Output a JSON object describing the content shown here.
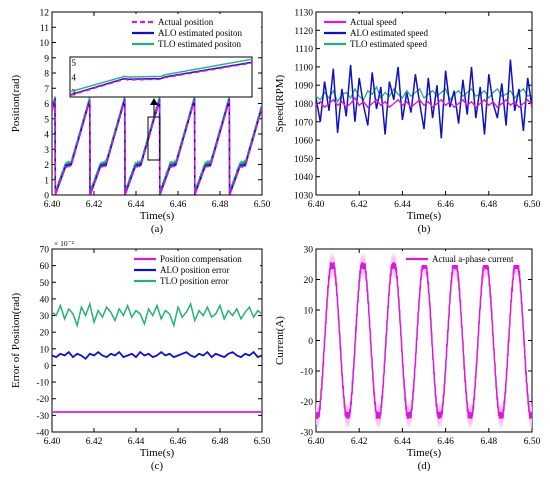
{
  "colors": {
    "actual": "#d81bd8",
    "alo": "#1010c8",
    "tlo": "#27b07a",
    "current_band": "#f6c6f6"
  },
  "chart_data": [
    {
      "type": "line",
      "panel": "(a)",
      "xlabel": "Time(s)",
      "ylabel": "Position(rad)",
      "xlim": [
        6.4,
        6.5
      ],
      "ylim": [
        0,
        12
      ],
      "xticks": [
        "6.40",
        "6.42",
        "6.44",
        "6.46",
        "6.48",
        "6.50"
      ],
      "yticks": [
        "0",
        "1",
        "2",
        "3",
        "4",
        "5",
        "6",
        "7",
        "8",
        "9",
        "10",
        "11",
        "12"
      ],
      "grid": false,
      "legend_position": "top-right",
      "period": 0.0166,
      "phase_start": 6.4015,
      "peak": 6.28,
      "series": [
        {
          "name": "Actual position",
          "style": "dashed",
          "color_key": "actual"
        },
        {
          "name": "ALO estimated positon",
          "style": "solid",
          "color_key": "alo"
        },
        {
          "name": "TLO estimated positon",
          "style": "solid",
          "color_key": "tlo"
        }
      ],
      "inset": {
        "yticks": [
          "3",
          "4",
          "5"
        ],
        "tlo": [
          [
            0,
            3.05
          ],
          [
            0.3,
            4.1
          ],
          [
            0.32,
            4.05
          ],
          [
            0.5,
            4.1
          ],
          [
            0.52,
            4.2
          ],
          [
            1,
            5.25
          ]
        ],
        "alo": [
          [
            0,
            2.85
          ],
          [
            0.3,
            3.95
          ],
          [
            0.32,
            3.9
          ],
          [
            0.5,
            3.95
          ],
          [
            0.52,
            4.05
          ],
          [
            1,
            5.05
          ]
        ],
        "actual": [
          [
            0,
            2.8
          ],
          [
            0.3,
            3.9
          ],
          [
            0.32,
            3.85
          ],
          [
            0.5,
            3.9
          ],
          [
            0.52,
            4.0
          ],
          [
            1,
            5.0
          ]
        ]
      }
    },
    {
      "type": "line",
      "panel": "(b)",
      "xlabel": "Time(s)",
      "ylabel": "Speed(RPM)",
      "xlim": [
        6.4,
        6.5
      ],
      "ylim": [
        1030,
        1130
      ],
      "xticks": [
        "6.40",
        "6.42",
        "6.44",
        "6.46",
        "6.48",
        "6.50"
      ],
      "yticks": [
        "1030",
        "1040",
        "1050",
        "1060",
        "1070",
        "1080",
        "1090",
        "1100",
        "1110",
        "1120",
        "1130"
      ],
      "grid": false,
      "legend_position": "top-left",
      "series": [
        {
          "name": "Actual speed",
          "color_key": "actual",
          "values": [
            1079,
            1081,
            1078,
            1080,
            1082,
            1079,
            1081,
            1078,
            1080,
            1083,
            1079,
            1081,
            1078,
            1080,
            1082,
            1079,
            1081,
            1078,
            1080,
            1082,
            1079,
            1081,
            1078,
            1080,
            1082,
            1079,
            1081,
            1078,
            1080,
            1082,
            1079,
            1081,
            1078,
            1080,
            1082,
            1079,
            1081,
            1078,
            1080,
            1082,
            1079,
            1081,
            1078,
            1080,
            1082,
            1079,
            1081,
            1078,
            1080,
            1082,
            1079
          ]
        },
        {
          "name": "ALO estimated speed",
          "color_key": "alo",
          "values": [
            1083,
            1070,
            1092,
            1076,
            1099,
            1064,
            1088,
            1073,
            1101,
            1070,
            1094,
            1079,
            1068,
            1097,
            1077,
            1089,
            1063,
            1092,
            1082,
            1100,
            1071,
            1086,
            1075,
            1096,
            1080,
            1066,
            1094,
            1072,
            1090,
            1061,
            1098,
            1078,
            1087,
            1069,
            1093,
            1074,
            1100,
            1072,
            1089,
            1063,
            1096,
            1080,
            1072,
            1091,
            1068,
            1104,
            1076,
            1088,
            1065,
            1094,
            1078
          ]
        },
        {
          "name": "TLO estimated speed",
          "color_key": "tlo",
          "values": [
            1084,
            1082,
            1086,
            1083,
            1087,
            1081,
            1085,
            1086,
            1083,
            1088,
            1084,
            1082,
            1087,
            1085,
            1089,
            1083,
            1086,
            1084,
            1088,
            1085,
            1083,
            1087,
            1084,
            1086,
            1088,
            1083,
            1085,
            1087,
            1084,
            1086,
            1088,
            1082,
            1085,
            1087,
            1084,
            1086,
            1088,
            1084,
            1085,
            1087,
            1083,
            1086,
            1088,
            1084,
            1085,
            1087,
            1083,
            1086,
            1088,
            1084,
            1085
          ]
        }
      ]
    },
    {
      "type": "line",
      "panel": "(c)",
      "xlabel": "Time(s)",
      "ylabel": "Error of Position(rad)",
      "y_multiplier": "× 10⁻²",
      "xlim": [
        6.4,
        6.5
      ],
      "ylim": [
        -40,
        70
      ],
      "xticks": [
        "6.40",
        "6.42",
        "6.44",
        "6.46",
        "6.48",
        "6.50"
      ],
      "yticks": [
        "-40",
        "-30",
        "-20",
        "-10",
        "0",
        "10",
        "20",
        "30",
        "40",
        "50",
        "60",
        "70"
      ],
      "grid": false,
      "legend_position": "top-right",
      "series": [
        {
          "name": "Position compensation",
          "color_key": "actual",
          "values": [
            -28,
            -28,
            -28,
            -28,
            -28,
            -28,
            -28,
            -28,
            -28,
            -28,
            -28,
            -28,
            -28,
            -28,
            -28,
            -28,
            -28,
            -28,
            -28,
            -28,
            -28,
            -28,
            -28,
            -28,
            -28,
            -28,
            -28,
            -28,
            -28,
            -28,
            -28,
            -28,
            -28,
            -28,
            -28,
            -28,
            -28,
            -28,
            -28,
            -28,
            -28,
            -28,
            -28,
            -28,
            -28,
            -28,
            -28,
            -28,
            -28,
            -28,
            -28
          ]
        },
        {
          "name": "ALO position error",
          "color_key": "alo",
          "values": [
            6,
            5,
            7,
            6,
            8,
            5,
            7,
            6,
            4,
            7,
            6,
            8,
            6,
            5,
            7,
            6,
            8,
            5,
            6,
            7,
            5,
            8,
            6,
            7,
            5,
            6,
            8,
            6,
            7,
            5,
            6,
            7,
            8,
            6,
            5,
            7,
            6,
            8,
            5,
            7,
            6,
            5,
            7,
            8,
            6,
            5,
            7,
            6,
            8,
            5,
            6
          ]
        },
        {
          "name": "TLO position error",
          "color_key": "tlo",
          "values": [
            32,
            30,
            36,
            28,
            34,
            31,
            24,
            35,
            30,
            37,
            26,
            33,
            29,
            35,
            32,
            27,
            34,
            30,
            36,
            29,
            33,
            31,
            25,
            34,
            30,
            36,
            28,
            33,
            31,
            24,
            35,
            29,
            32,
            37,
            27,
            33,
            30,
            35,
            29,
            31,
            36,
            28,
            33,
            30,
            34,
            28,
            32,
            35,
            29,
            33,
            31
          ]
        }
      ]
    },
    {
      "type": "line",
      "panel": "(d)",
      "xlabel": "Time(s)",
      "ylabel": "Current(A)",
      "xlim": [
        6.4,
        6.5
      ],
      "ylim": [
        -30,
        30
      ],
      "xticks": [
        "6.40",
        "6.42",
        "6.44",
        "6.46",
        "6.48",
        "6.50"
      ],
      "yticks": [
        "-30",
        "-20",
        "-10",
        "0",
        "10",
        "20",
        "30"
      ],
      "grid": false,
      "legend_position": "top-right",
      "period": 0.0142,
      "amplitude": 25,
      "series": [
        {
          "name": "Actual a-phase current",
          "color_key": "actual"
        }
      ]
    }
  ]
}
